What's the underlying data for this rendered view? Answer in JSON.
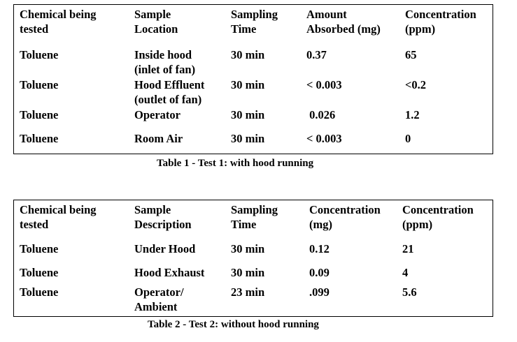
{
  "table1": {
    "headers": [
      [
        "Chemical being",
        "tested"
      ],
      [
        "Sample",
        "Location"
      ],
      [
        "Sampling",
        "Time"
      ],
      [
        "Amount",
        "Absorbed (mg)"
      ],
      [
        "Concentration",
        "(ppm)"
      ]
    ],
    "rows": [
      {
        "chemical": "Toluene",
        "location": [
          "Inside hood",
          "(inlet of fan)"
        ],
        "time": "30 min",
        "amount": "0.37",
        "concentration": "65"
      },
      {
        "chemical": "Toluene",
        "location": [
          "Hood Effluent",
          "(outlet of fan)"
        ],
        "time": "30 min",
        "amount": "< 0.003",
        "concentration": "<0.2"
      },
      {
        "chemical": "Toluene",
        "location": [
          "Operator"
        ],
        "time": "30 min",
        "amount": " 0.026",
        "concentration": "1.2"
      },
      {
        "chemical": "Toluene",
        "location": [
          "Room Air"
        ],
        "time": "30 min",
        "amount": "< 0.003",
        "concentration": "0"
      }
    ],
    "caption": "Table 1 - Test 1: with hood running"
  },
  "table2": {
    "headers": [
      [
        "Chemical being",
        "tested"
      ],
      [
        "Sample",
        "Description"
      ],
      [
        "Sampling",
        "Time"
      ],
      [
        "Concentration",
        "(mg)"
      ],
      [
        "Concentration",
        "(ppm)"
      ]
    ],
    "rows": [
      {
        "chemical": "Toluene",
        "description": [
          "Under Hood"
        ],
        "time": "30 min",
        "concentration_mg": "0.12",
        "concentration_ppm": "21"
      },
      {
        "chemical": "Toluene",
        "description": [
          "Hood Exhaust"
        ],
        "time": "30 min",
        "concentration_mg": "0.09",
        "concentration_ppm": "4"
      },
      {
        "chemical": "Toluene",
        "description": [
          "Operator/",
          "Ambient"
        ],
        "time": "23 min",
        "concentration_mg": ".099",
        "concentration_ppm": "5.6"
      }
    ],
    "caption": "Table 2 - Test 2: without hood running"
  }
}
